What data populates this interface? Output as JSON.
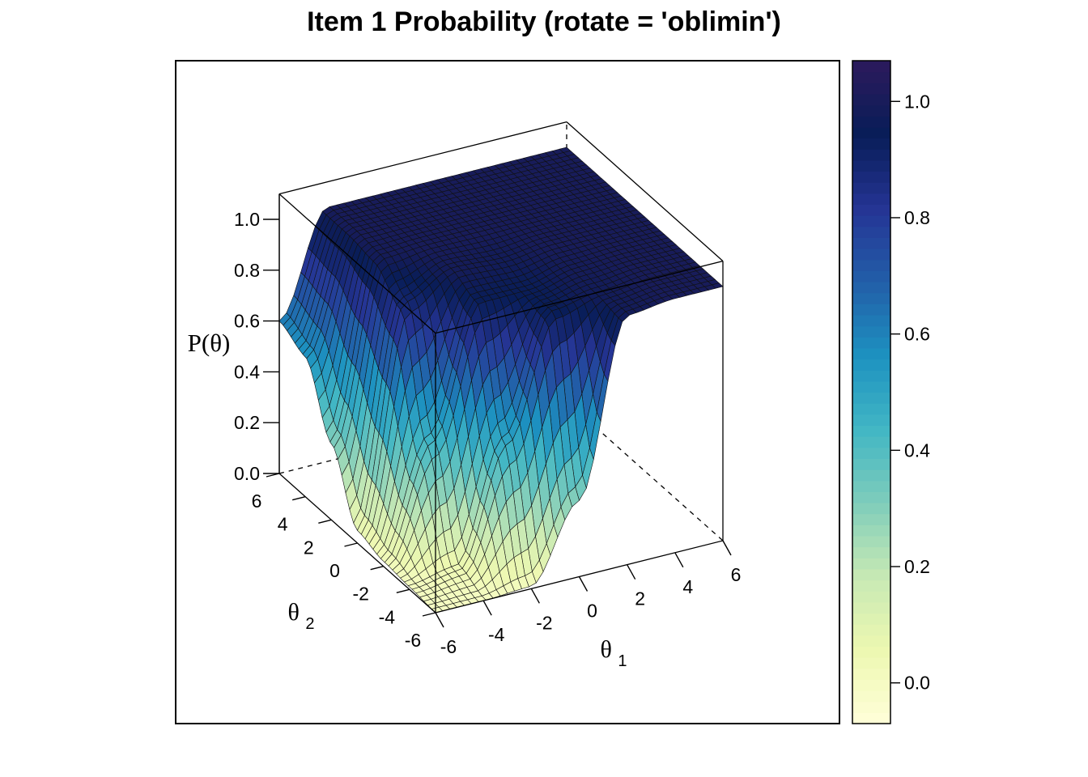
{
  "chart_data": {
    "type": "surface",
    "title": "Item 1 Probability (rotate = 'oblimin')",
    "xlabel": "θ1",
    "ylabel": "θ2",
    "zlabel": "P(θ)",
    "xlim": [
      -6,
      6
    ],
    "ylim": [
      -6,
      6
    ],
    "zlim": [
      0,
      1.1
    ],
    "x_ticks": [
      "-6",
      "-4",
      "-2",
      "0",
      "2",
      "4",
      "6"
    ],
    "y_ticks": [
      "-6",
      "-4",
      "-2",
      "0",
      "2",
      "4",
      "6"
    ],
    "z_ticks": [
      "0.0",
      "0.2",
      "0.4",
      "0.6",
      "0.8",
      "1.0"
    ],
    "surface_grid": {
      "theta1": [
        -6,
        -4,
        -2,
        0,
        2,
        4,
        6
      ],
      "theta2": [
        -6,
        -4,
        -2,
        0,
        2,
        4,
        6
      ],
      "description_rows_by_theta2": "P values at theta1 = -6..6",
      "P": [
        [
          0.0,
          0.0,
          0.01,
          0.3,
          0.98,
          1.0,
          1.0
        ],
        [
          0.01,
          0.04,
          0.5,
          0.95,
          0.98,
          1.0,
          1.0
        ],
        [
          0.02,
          0.45,
          0.95,
          0.95,
          0.99,
          1.0,
          1.0
        ],
        [
          0.05,
          0.9,
          0.99,
          0.98,
          1.0,
          1.0,
          1.0
        ],
        [
          0.3,
          0.99,
          1.0,
          1.0,
          1.0,
          1.0,
          1.0
        ],
        [
          0.55,
          1.0,
          1.0,
          1.0,
          1.0,
          1.0,
          1.0
        ],
        [
          0.6,
          1.0,
          1.0,
          1.0,
          1.0,
          1.0,
          1.0
        ]
      ]
    },
    "colorbar": {
      "ticks": [
        "0.0",
        "0.2",
        "0.4",
        "0.6",
        "0.8",
        "1.0"
      ],
      "range": [
        -0.07,
        1.07
      ],
      "palette": [
        "#ffffd9",
        "#edf8b1",
        "#c7e9b4",
        "#7fcdbb",
        "#41b6c4",
        "#1d91c0",
        "#225ea8",
        "#253494",
        "#081d58",
        "#2c1a5c"
      ]
    }
  }
}
